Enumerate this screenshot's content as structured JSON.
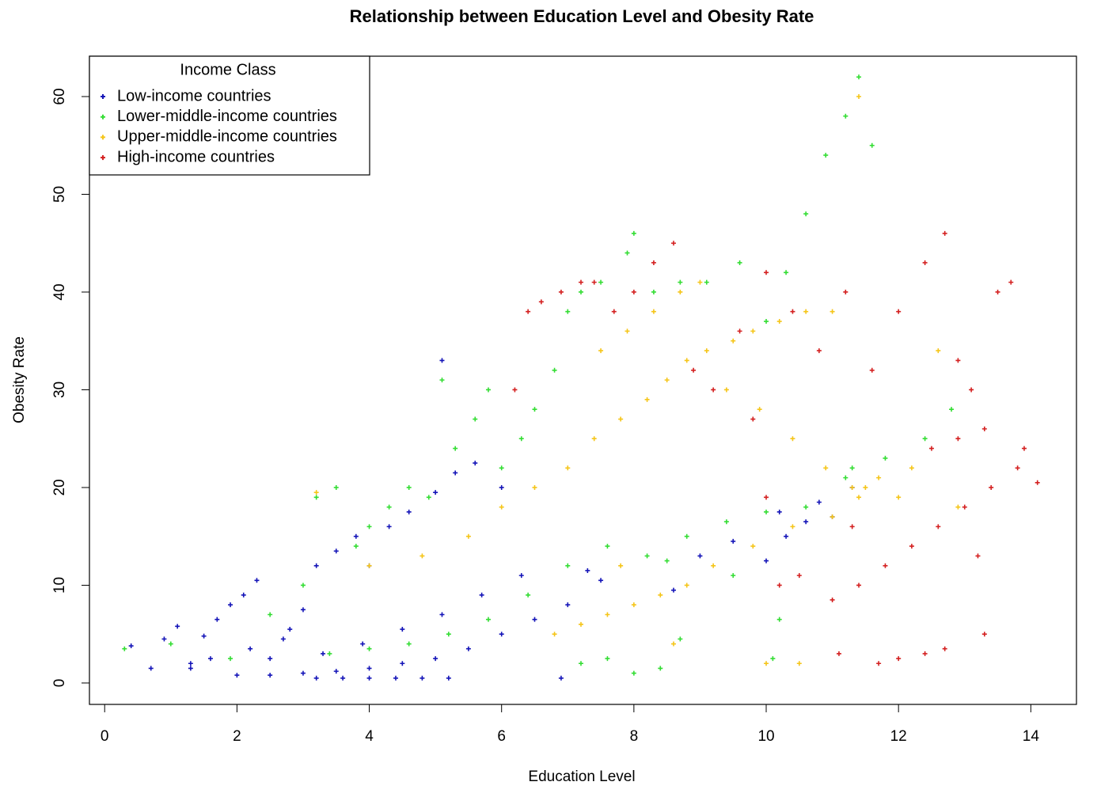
{
  "chart_data": {
    "type": "scatter",
    "title": "Relationship between Education Level and Obesity Rate",
    "x_label": "Education Level",
    "y_label": "Obesity Rate",
    "xlim": [
      -0.23,
      14.69
    ],
    "ylim": [
      -2.19,
      64.13
    ],
    "xticks": [
      0,
      2,
      4,
      6,
      8,
      10,
      12,
      14
    ],
    "yticks": [
      0,
      10,
      20,
      30,
      40,
      50,
      60
    ],
    "legend_title": "Income Class",
    "legend_position": "top-left",
    "series": [
      {
        "name": "Low-income countries",
        "color": "#1414b8",
        "x": [
          0.4,
          0.7,
          0.9,
          1.1,
          1.3,
          1.5,
          1.7,
          1.9,
          2.1,
          2.3,
          2.5,
          2.8,
          3.0,
          3.2,
          3.5,
          3.8,
          4.0,
          4.3,
          4.6,
          5.0,
          5.3,
          5.6,
          6.0,
          2.0,
          2.5,
          3.0,
          3.5,
          4.0,
          4.5,
          5.0,
          5.5,
          6.0,
          6.5,
          7.0,
          7.5,
          3.2,
          3.6,
          4.0,
          4.4,
          4.8,
          5.2,
          1.3,
          1.6,
          2.2,
          2.7,
          3.3,
          3.9,
          4.5,
          5.1,
          5.1,
          5.7,
          6.3,
          6.9,
          7.3,
          8.6,
          9.0,
          9.5,
          10.0,
          10.3,
          10.6,
          11.0,
          11.3,
          10.2,
          10.8
        ],
        "values": [
          3.8,
          1.5,
          4.5,
          5.8,
          2.0,
          4.8,
          6.5,
          8.0,
          9.0,
          10.5,
          2.5,
          5.5,
          7.5,
          12.0,
          13.5,
          15.0,
          12.0,
          16.0,
          17.5,
          19.5,
          21.5,
          22.5,
          20.0,
          0.8,
          0.8,
          1.0,
          1.2,
          1.5,
          2.0,
          2.5,
          3.5,
          5.0,
          6.5,
          8.0,
          10.5,
          0.5,
          0.5,
          0.5,
          0.5,
          0.5,
          0.5,
          1.5,
          2.5,
          3.5,
          4.5,
          3.0,
          4.0,
          5.5,
          7.0,
          33.0,
          9.0,
          11.0,
          0.5,
          11.5,
          9.5,
          13.0,
          14.5,
          12.5,
          15.0,
          16.5,
          17.0,
          20.0,
          17.5,
          18.5
        ]
      },
      {
        "name": "Lower-middle-income countries",
        "color": "#33dd33",
        "x": [
          0.3,
          1.0,
          1.9,
          2.5,
          3.0,
          3.2,
          3.5,
          3.8,
          4.0,
          4.3,
          4.6,
          4.9,
          5.1,
          5.3,
          5.6,
          5.8,
          6.0,
          6.3,
          6.5,
          6.8,
          7.0,
          7.2,
          7.5,
          7.9,
          8.0,
          8.3,
          8.7,
          9.1,
          9.6,
          10.0,
          10.3,
          10.6,
          10.9,
          11.2,
          11.4,
          11.6,
          11.3,
          7.2,
          7.6,
          8.0,
          8.4,
          8.7,
          10.1,
          10.2,
          3.4,
          4.0,
          4.6,
          5.2,
          5.8,
          6.4,
          7.0,
          7.6,
          8.2,
          8.8,
          9.4,
          10.0,
          10.6,
          11.2,
          11.8,
          12.4,
          12.8,
          9.5,
          8.5
        ],
        "values": [
          3.5,
          4.0,
          2.5,
          7.0,
          10.0,
          19.0,
          20.0,
          14.0,
          16.0,
          18.0,
          20.0,
          19.0,
          31.0,
          24.0,
          27.0,
          30.0,
          22.0,
          25.0,
          28.0,
          32.0,
          38.0,
          40.0,
          41.0,
          44.0,
          46.0,
          40.0,
          41.0,
          41.0,
          43.0,
          37.0,
          42.0,
          48.0,
          54.0,
          58.0,
          62.0,
          55.0,
          22.0,
          2.0,
          2.5,
          1.0,
          1.5,
          4.5,
          2.5,
          6.5,
          3.0,
          3.5,
          4.0,
          5.0,
          6.5,
          9.0,
          12.0,
          14.0,
          13.0,
          15.0,
          16.5,
          17.5,
          18.0,
          21.0,
          23.0,
          25.0,
          28.0,
          11.0,
          12.5
        ]
      },
      {
        "name": "Upper-middle-income countries",
        "color": "#f5c518",
        "x": [
          3.2,
          4.0,
          4.8,
          5.5,
          6.0,
          6.5,
          7.0,
          7.4,
          7.8,
          8.2,
          8.5,
          8.8,
          9.1,
          9.5,
          9.8,
          10.2,
          10.6,
          11.0,
          11.4,
          7.5,
          7.9,
          8.3,
          8.7,
          9.0,
          9.4,
          9.9,
          10.4,
          10.9,
          11.3,
          11.7,
          12.2,
          12.6,
          12.9,
          6.8,
          7.2,
          7.6,
          8.0,
          8.4,
          8.8,
          9.2,
          9.8,
          10.4,
          11.0,
          11.4,
          11.5,
          10.0,
          10.5,
          8.6,
          7.8,
          12.0
        ],
        "values": [
          19.5,
          12.0,
          13.0,
          15.0,
          18.0,
          20.0,
          22.0,
          25.0,
          27.0,
          29.0,
          31.0,
          33.0,
          34.0,
          35.0,
          36.0,
          37.0,
          38.0,
          38.0,
          60.0,
          34.0,
          36.0,
          38.0,
          40.0,
          41.0,
          30.0,
          28.0,
          25.0,
          22.0,
          20.0,
          21.0,
          22.0,
          34.0,
          18.0,
          5.0,
          6.0,
          7.0,
          8.0,
          9.0,
          10.0,
          12.0,
          14.0,
          16.0,
          17.0,
          19.0,
          20.0,
          2.0,
          2.0,
          4.0,
          12.0,
          19.0
        ]
      },
      {
        "name": "High-income countries",
        "color": "#d42020",
        "x": [
          6.2,
          6.4,
          6.6,
          6.9,
          7.2,
          7.4,
          7.7,
          8.0,
          8.3,
          8.6,
          8.9,
          9.2,
          9.6,
          10.0,
          10.4,
          10.8,
          11.2,
          11.6,
          12.0,
          12.4,
          12.7,
          12.9,
          13.1,
          13.3,
          13.5,
          13.7,
          13.9,
          14.1,
          11.0,
          11.4,
          11.8,
          12.2,
          12.6,
          13.0,
          13.4,
          13.8,
          11.7,
          12.0,
          12.4,
          12.7,
          13.3,
          10.2,
          10.5,
          11.1,
          9.8,
          10.0,
          11.3,
          12.5,
          12.9,
          13.2
        ],
        "values": [
          30.0,
          38.0,
          39.0,
          40.0,
          41.0,
          41.0,
          38.0,
          40.0,
          43.0,
          45.0,
          32.0,
          30.0,
          36.0,
          42.0,
          38.0,
          34.0,
          40.0,
          32.0,
          38.0,
          43.0,
          46.0,
          33.0,
          30.0,
          26.0,
          40.0,
          41.0,
          24.0,
          20.5,
          8.5,
          10.0,
          12.0,
          14.0,
          16.0,
          18.0,
          20.0,
          22.0,
          2.0,
          2.5,
          3.0,
          3.5,
          5.0,
          10.0,
          11.0,
          3.0,
          27.0,
          19.0,
          16.0,
          24.0,
          25.0,
          13.0
        ]
      }
    ]
  }
}
